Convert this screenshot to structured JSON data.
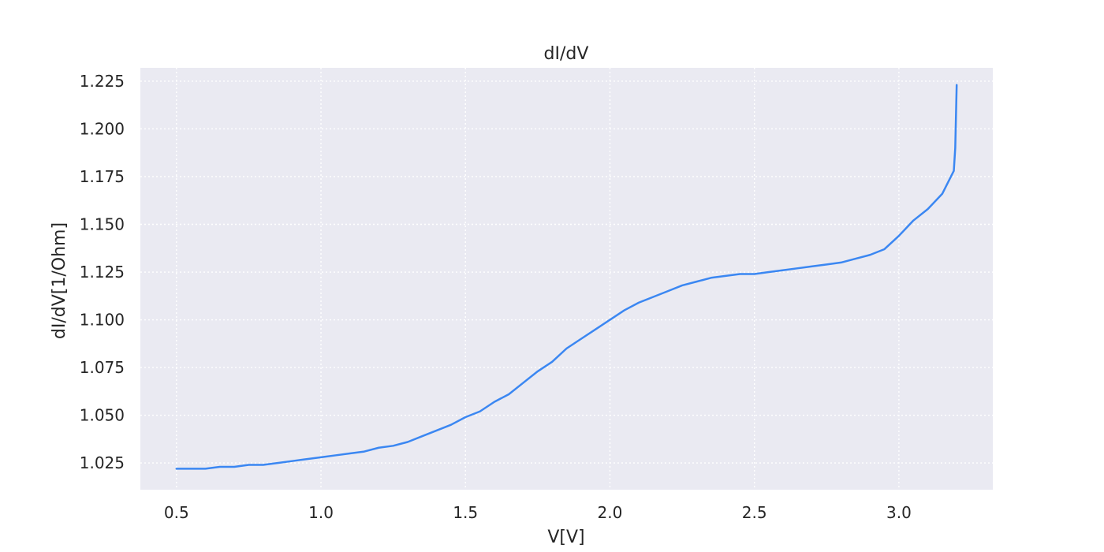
{
  "chart_data": {
    "type": "line",
    "title": "dI/dV",
    "xlabel": "V[V]",
    "ylabel": "dI/dV[1/Ohm]",
    "xlim": [
      0.375,
      3.325
    ],
    "ylim": [
      1.011,
      1.232
    ],
    "xticks": [
      0.5,
      1.0,
      1.5,
      2.0,
      2.5,
      3.0
    ],
    "xtick_labels": [
      "0.5",
      "1.0",
      "1.5",
      "2.0",
      "2.5",
      "3.0"
    ],
    "yticks": [
      1.025,
      1.05,
      1.075,
      1.1,
      1.125,
      1.15,
      1.175,
      1.2,
      1.225
    ],
    "ytick_labels": [
      "1.025",
      "1.050",
      "1.075",
      "1.100",
      "1.125",
      "1.150",
      "1.175",
      "1.200",
      "1.225"
    ],
    "grid": true,
    "colors": {
      "background": "#eaeaf2",
      "grid": "#ffffff",
      "line": "#3b87f2"
    },
    "series": [
      {
        "name": "dI/dV",
        "x": [
          0.5,
          0.55,
          0.6,
          0.65,
          0.7,
          0.75,
          0.8,
          0.85,
          0.9,
          0.95,
          1.0,
          1.05,
          1.1,
          1.15,
          1.2,
          1.25,
          1.3,
          1.35,
          1.4,
          1.45,
          1.5,
          1.55,
          1.6,
          1.65,
          1.7,
          1.75,
          1.8,
          1.85,
          1.9,
          1.95,
          2.0,
          2.05,
          2.1,
          2.15,
          2.2,
          2.25,
          2.3,
          2.35,
          2.4,
          2.45,
          2.5,
          2.55,
          2.6,
          2.65,
          2.7,
          2.75,
          2.8,
          2.85,
          2.9,
          2.95,
          3.0,
          3.05,
          3.1,
          3.15,
          3.18,
          3.19,
          3.195,
          3.2
        ],
        "values": [
          1.022,
          1.022,
          1.022,
          1.023,
          1.023,
          1.024,
          1.024,
          1.025,
          1.026,
          1.027,
          1.028,
          1.029,
          1.03,
          1.031,
          1.033,
          1.034,
          1.036,
          1.039,
          1.042,
          1.045,
          1.049,
          1.052,
          1.057,
          1.061,
          1.067,
          1.073,
          1.078,
          1.085,
          1.09,
          1.095,
          1.1,
          1.105,
          1.109,
          1.112,
          1.115,
          1.118,
          1.12,
          1.122,
          1.123,
          1.124,
          1.124,
          1.125,
          1.126,
          1.127,
          1.128,
          1.129,
          1.13,
          1.132,
          1.134,
          1.137,
          1.144,
          1.152,
          1.158,
          1.166,
          1.175,
          1.178,
          1.19,
          1.223
        ]
      }
    ]
  }
}
